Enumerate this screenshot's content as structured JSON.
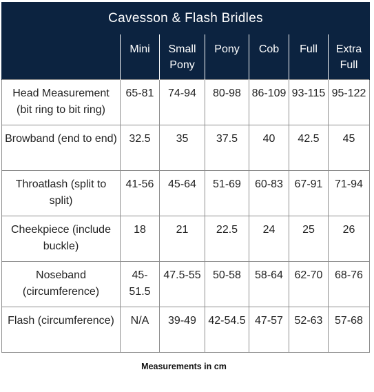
{
  "title": "Cavesson & Flash Bridles",
  "columns": [
    "Mini",
    "Small Pony",
    "Pony",
    "Cob",
    "Full",
    "Extra Full"
  ],
  "rows": [
    {
      "label": "Head Measurement (bit ring to bit ring)",
      "values": [
        "65-81",
        "74-94",
        "80-98",
        "86-109",
        "93-115",
        "95-122"
      ]
    },
    {
      "label": "Browband (end to end)",
      "values": [
        "32.5",
        "35",
        "37.5",
        "40",
        "42.5",
        "45"
      ]
    },
    {
      "label": "Throatlash (split to split)",
      "values": [
        "41-56",
        "45-64",
        "51-69",
        "60-83",
        "67-91",
        "71-94"
      ]
    },
    {
      "label": "Cheekpiece (include buckle)",
      "values": [
        "18",
        "21",
        "22.5",
        "24",
        "25",
        "26"
      ]
    },
    {
      "label": "Noseband (circumference)",
      "values": [
        "45-51.5",
        "47.5-55",
        "50-58",
        "58-64",
        "62-70",
        "68-76"
      ]
    },
    {
      "label": "Flash (circumference)",
      "values": [
        "N/A",
        "39-49",
        "42-54.5",
        "47-57",
        "52-63",
        "57-68"
      ]
    }
  ],
  "footnote": "Measurements in cm",
  "colors": {
    "header_bg": "#0c2340",
    "header_text": "#ffffff",
    "grid_line": "#8c8c8c"
  }
}
